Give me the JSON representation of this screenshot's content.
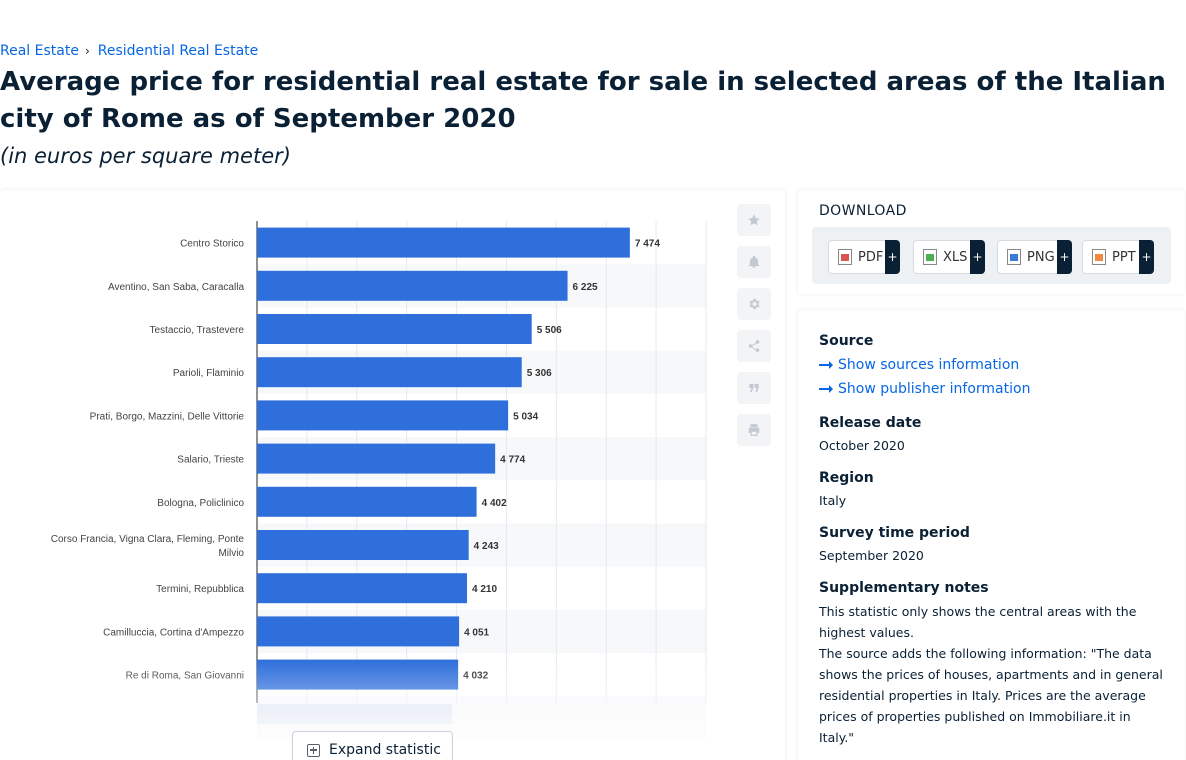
{
  "breadcrumb": {
    "items": [
      "Real Estate",
      "Residential Real Estate"
    ],
    "separator": "›"
  },
  "title": "Average price for residential real estate for sale in selected areas of the Italian city of Rome as of September 2020",
  "subtitle": "(in euros per square meter)",
  "chart_data": {
    "type": "bar",
    "orientation": "horizontal",
    "categories": [
      "Centro Storico",
      "Aventino, San Saba, Caracalla",
      "Testaccio, Trastevere",
      "Parioli, Flaminio",
      "Prati, Borgo, Mazzini, Delle Vittorie",
      "Salario, Trieste",
      "Bologna, Policlinico",
      "Corso Francia, Vigna Clara, Fleming, Ponte Milvio",
      "Termini, Repubblica",
      "Camilluccia, Cortina d'Ampezzo",
      "Re di Roma, San Giovanni"
    ],
    "values": [
      7474,
      6225,
      5506,
      5306,
      5034,
      4774,
      4402,
      4243,
      4210,
      4051,
      4032
    ],
    "value_labels": [
      "7 474",
      "6 225",
      "5 506",
      "5 306",
      "5 034",
      "4 774",
      "4 402",
      "4 243",
      "4 210",
      "4 051",
      "4 032"
    ],
    "xlim": [
      0,
      9000
    ],
    "grid": true,
    "bar_color": "#2f6fdb"
  },
  "tools": [
    "star-icon",
    "bell-icon",
    "gear-icon",
    "share-icon",
    "quote-icon",
    "print-icon"
  ],
  "expand_label": "Expand statistic",
  "download": {
    "title": "DOWNLOAD",
    "formats": [
      {
        "label": "PDF",
        "color": "#d9534f"
      },
      {
        "label": "XLS",
        "color": "#4caf50"
      },
      {
        "label": "PNG",
        "color": "#3a7bd5"
      },
      {
        "label": "PPT",
        "color": "#f0883e"
      }
    ],
    "plus": "+"
  },
  "info": {
    "source_title": "Source",
    "show_sources": "Show sources information",
    "show_publisher": "Show publisher information",
    "release_title": "Release date",
    "release_value": "October 2020",
    "region_title": "Region",
    "region_value": "Italy",
    "survey_title": "Survey time period",
    "survey_value": "September 2020",
    "notes_title": "Supplementary notes",
    "notes_p1": "This statistic only shows the central areas with the highest values.",
    "notes_p2": "The source adds the following information: \"The data shows the prices of houses, apartments and in general residential properties in Italy. Prices are the average prices of properties published on Immobiliare.it in Italy.\""
  }
}
